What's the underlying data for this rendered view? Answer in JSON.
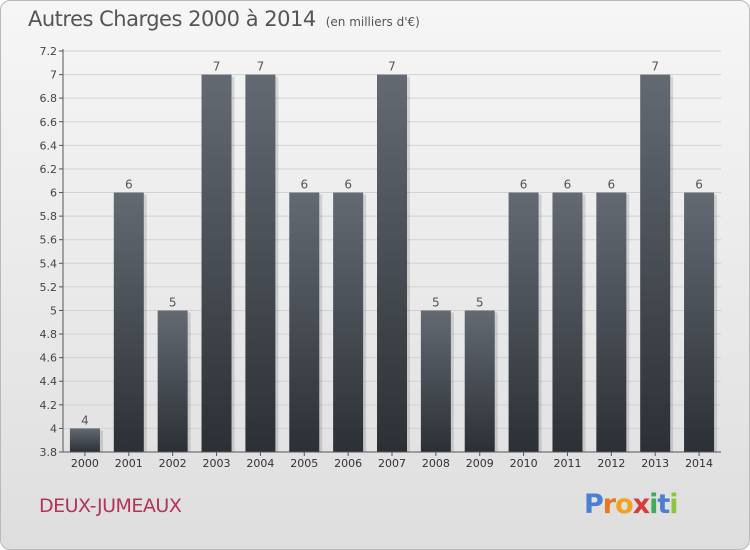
{
  "header": {
    "title": "Autres Charges 2000 à 2014",
    "subtitle": "(en milliers d'€)"
  },
  "footer": {
    "commune": "DEUX-JUMEAUX",
    "brand_letters": [
      "P",
      "r",
      "o",
      "x",
      "i",
      "t",
      "i"
    ]
  },
  "colors": {
    "bar_top": "#646a72",
    "bar_bottom": "#2b3036",
    "brand": [
      "#4a7fd4",
      "#e8771f",
      "#f2a31b",
      "#d93b3b",
      "#3cae5a",
      "#4a7fd4",
      "#8cc63e"
    ]
  },
  "chart_data": {
    "type": "bar",
    "title": "Autres Charges 2000 à 2014",
    "subtitle": "(en milliers d'€)",
    "xlabel": "",
    "ylabel": "",
    "categories": [
      "2000",
      "2001",
      "2002",
      "2003",
      "2004",
      "2005",
      "2006",
      "2007",
      "2008",
      "2009",
      "2010",
      "2011",
      "2012",
      "2013",
      "2014"
    ],
    "values": [
      4,
      6,
      5,
      7,
      7,
      6,
      6,
      7,
      5,
      5,
      6,
      6,
      6,
      7,
      6
    ],
    "data_labels": [
      "4",
      "6",
      "5",
      "7",
      "7",
      "6",
      "6",
      "7",
      "5",
      "5",
      "6",
      "6",
      "6",
      "7",
      "6"
    ],
    "ylim": [
      3.8,
      7.2
    ],
    "yticks": [
      "3.8",
      "4",
      "4.2",
      "4.4",
      "4.6",
      "4.8",
      "5",
      "5.2",
      "5.4",
      "5.6",
      "5.8",
      "6",
      "6.2",
      "6.4",
      "6.6",
      "6.8",
      "7",
      "7.2"
    ],
    "grid": true,
    "legend": "none"
  }
}
